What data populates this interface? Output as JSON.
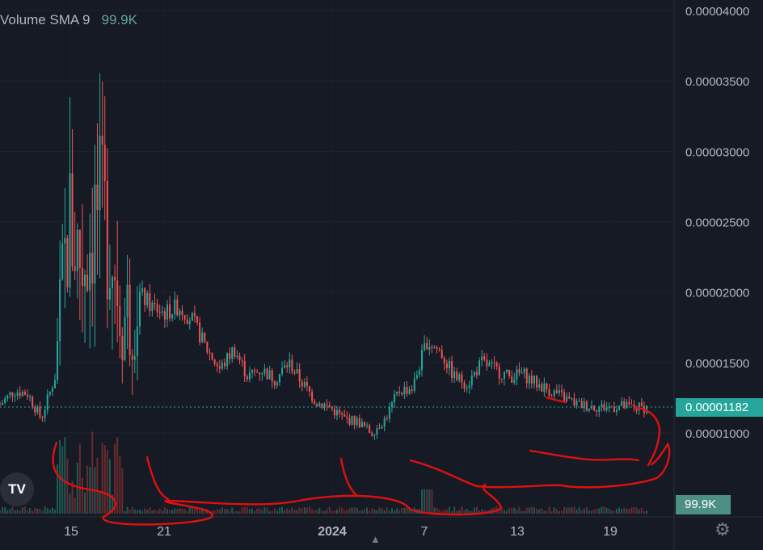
{
  "indicator": {
    "name": "Volume SMA 9",
    "value": "99.9K"
  },
  "price_badge": "0.00001182",
  "volume_badge": "99.9K",
  "logo": "TV",
  "icons": {
    "settings": "gear-icon",
    "scroll": "up-arrow-icon"
  },
  "colors": {
    "background": "#161a25",
    "up": "#26a69a",
    "down": "#ef5350",
    "annotation": "#e01010",
    "grid": "#232733"
  },
  "chart_data": {
    "type": "candlestick",
    "title": "",
    "xlabel": "",
    "ylabel": "",
    "ylim": [
      8.5e-06,
      4.1e-05
    ],
    "y_ticks": [
      "0.00004000",
      "0.00003500",
      "0.00003000",
      "0.00002500",
      "0.00002000",
      "0.00001500",
      "0.00001000"
    ],
    "y_tick_values": [
      4e-05,
      3.5e-05,
      3e-05,
      2.5e-05,
      2e-05,
      1.5e-05,
      1e-05
    ],
    "x_ticks": [
      "15",
      "21",
      "2024",
      "7",
      "13",
      "19"
    ],
    "last_price": 1.182e-05,
    "price_path": {
      "x_day": [
        0,
        1,
        2,
        3,
        4,
        5,
        6,
        7,
        8,
        9,
        10,
        11,
        12,
        13,
        14,
        15,
        16,
        17,
        18,
        19,
        20,
        21,
        22,
        23,
        24,
        25,
        26,
        27,
        28,
        29,
        30,
        31,
        32,
        33,
        34,
        35,
        36,
        37,
        38,
        39,
        40,
        41,
        42,
        43,
        44,
        45,
        46,
        47
      ],
      "close": [
        1.2e-05,
        1.3e-05,
        1.28e-05,
        1.1e-05,
        1.4e-05,
        2.5e-05,
        2.2e-05,
        2.6e-05,
        2.4e-05,
        1.8e-05,
        2e-05,
        1.9e-05,
        1.85e-05,
        1.9e-05,
        1.8e-05,
        1.6e-05,
        1.45e-05,
        1.6e-05,
        1.4e-05,
        1.45e-05,
        1.38e-05,
        1.5e-05,
        1.35e-05,
        1.22e-05,
        1.18e-05,
        1.1e-05,
        1.08e-05,
        1e-05,
        1.1e-05,
        1.3e-05,
        1.32e-05,
        1.65e-05,
        1.58e-05,
        1.4e-05,
        1.35e-05,
        1.5e-05,
        1.45e-05,
        1.4e-05,
        1.42e-05,
        1.35e-05,
        1.3e-05,
        1.25e-05,
        1.2e-05,
        1.19e-05,
        1.18e-05,
        1.19e-05,
        1.18e-05,
        1.18e-05
      ]
    },
    "volume_spikes": [
      {
        "x_day": 5,
        "value": "high"
      },
      {
        "x_day": 7,
        "value": "high"
      },
      {
        "x_day": 31,
        "value": "medium"
      }
    ]
  }
}
